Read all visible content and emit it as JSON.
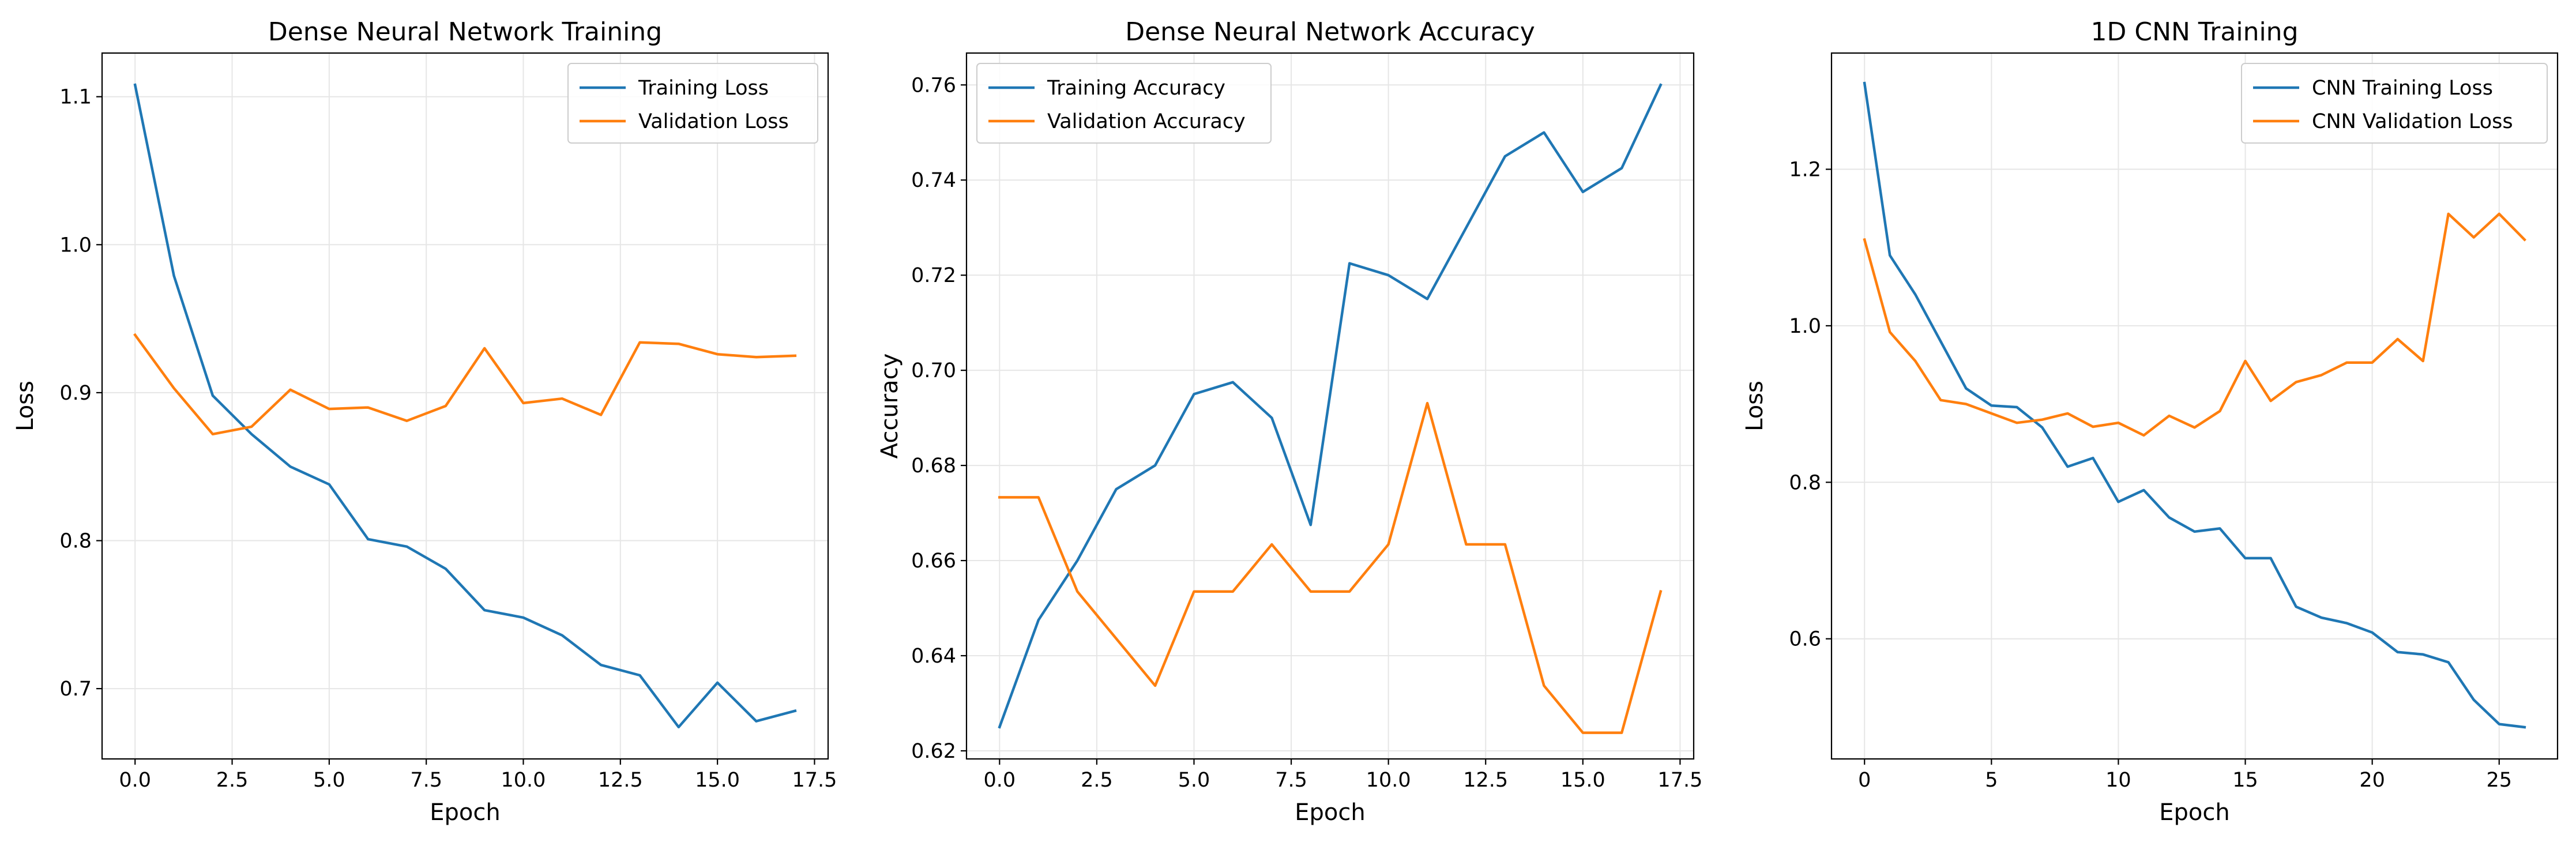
{
  "colors": {
    "series1": "#1f77b4",
    "series2": "#ff7f0e",
    "grid": "#e6e6e6",
    "axes": "#000000"
  },
  "chart_data": [
    {
      "type": "line",
      "title": "Dense Neural Network Training",
      "xlabel": "Epoch",
      "ylabel": "Loss",
      "xlim": [
        -0.85,
        17.85
      ],
      "ylim": [
        0.6525,
        1.1295
      ],
      "xticks": [
        0,
        2.5,
        5,
        7.5,
        10,
        12.5,
        15,
        17.5
      ],
      "xtick_labels": [
        "0.0",
        "2.5",
        "5.0",
        "7.5",
        "10.0",
        "12.5",
        "15.0",
        "17.5"
      ],
      "yticks": [
        0.7,
        0.8,
        0.9,
        1.0,
        1.1
      ],
      "ytick_labels": [
        "0.7",
        "0.8",
        "0.9",
        "1.0",
        "1.1"
      ],
      "grid": true,
      "legend": "top-right",
      "x": [
        0,
        1,
        2,
        3,
        4,
        5,
        6,
        7,
        8,
        9,
        10,
        11,
        12,
        13,
        14,
        15,
        16,
        17
      ],
      "series": [
        {
          "name": "Training Loss",
          "color": "#1f77b4",
          "values": [
            1.108,
            0.979,
            0.898,
            0.872,
            0.85,
            0.838,
            0.801,
            0.796,
            0.781,
            0.753,
            0.748,
            0.736,
            0.716,
            0.709,
            0.674,
            0.704,
            0.678,
            0.685
          ]
        },
        {
          "name": "Validation Loss",
          "color": "#ff7f0e",
          "values": [
            0.939,
            0.903,
            0.872,
            0.877,
            0.902,
            0.889,
            0.89,
            0.881,
            0.891,
            0.93,
            0.893,
            0.896,
            0.885,
            0.934,
            0.933,
            0.926,
            0.924,
            0.925
          ]
        }
      ]
    },
    {
      "type": "line",
      "title": "Dense Neural Network Accuracy",
      "xlabel": "Epoch",
      "ylabel": "Accuracy",
      "xlim": [
        -0.85,
        17.85
      ],
      "ylim": [
        0.6183,
        0.7667
      ],
      "xticks": [
        0,
        2.5,
        5,
        7.5,
        10,
        12.5,
        15,
        17.5
      ],
      "xtick_labels": [
        "0.0",
        "2.5",
        "5.0",
        "7.5",
        "10.0",
        "12.5",
        "15.0",
        "17.5"
      ],
      "yticks": [
        0.62,
        0.64,
        0.66,
        0.68,
        0.7,
        0.72,
        0.74,
        0.76
      ],
      "ytick_labels": [
        "0.62",
        "0.64",
        "0.66",
        "0.68",
        "0.70",
        "0.72",
        "0.74",
        "0.76"
      ],
      "grid": true,
      "legend": "top-left",
      "x": [
        0,
        1,
        2,
        3,
        4,
        5,
        6,
        7,
        8,
        9,
        10,
        11,
        12,
        13,
        14,
        15,
        16,
        17
      ],
      "series": [
        {
          "name": "Training Accuracy",
          "color": "#1f77b4",
          "values": [
            0.625,
            0.6475,
            0.66,
            0.675,
            0.68,
            0.695,
            0.6975,
            0.69,
            0.6675,
            0.7225,
            0.72,
            0.715,
            0.73,
            0.745,
            0.75,
            0.7375,
            0.7425,
            0.76
          ]
        },
        {
          "name": "Validation Accuracy",
          "color": "#ff7f0e",
          "values": [
            0.6733,
            0.6733,
            0.6535,
            0.6436,
            0.6337,
            0.6535,
            0.6535,
            0.6634,
            0.6535,
            0.6535,
            0.6634,
            0.6931,
            0.6634,
            0.6634,
            0.6337,
            0.6238,
            0.6238,
            0.6535
          ]
        }
      ]
    },
    {
      "type": "line",
      "title": "1D CNN Training",
      "xlabel": "Epoch",
      "ylabel": "Loss",
      "xlim": [
        -1.3,
        27.3
      ],
      "ylim": [
        0.4465,
        1.3485
      ],
      "xticks": [
        0,
        5,
        10,
        15,
        20,
        25
      ],
      "xtick_labels": [
        "0",
        "5",
        "10",
        "15",
        "20",
        "25"
      ],
      "yticks": [
        0.6,
        0.8,
        1.0,
        1.2
      ],
      "ytick_labels": [
        "0.6",
        "0.8",
        "1.0",
        "1.2"
      ],
      "grid": true,
      "legend": "top-right",
      "x": [
        0,
        1,
        2,
        3,
        4,
        5,
        6,
        7,
        8,
        9,
        10,
        11,
        12,
        13,
        14,
        15,
        16,
        17,
        18,
        19,
        20,
        21,
        22,
        23,
        24,
        25,
        26
      ],
      "series": [
        {
          "name": "CNN Training Loss",
          "color": "#1f77b4",
          "values": [
            1.31,
            1.09,
            1.04,
            0.98,
            0.92,
            0.898,
            0.896,
            0.87,
            0.82,
            0.831,
            0.775,
            0.79,
            0.755,
            0.737,
            0.741,
            0.703,
            0.703,
            0.641,
            0.627,
            0.62,
            0.608,
            0.583,
            0.58,
            0.57,
            0.522,
            0.491,
            0.487
          ]
        },
        {
          "name": "CNN Validation Loss",
          "color": "#ff7f0e",
          "values": [
            1.11,
            0.992,
            0.955,
            0.905,
            0.9,
            0.888,
            0.876,
            0.88,
            0.888,
            0.871,
            0.876,
            0.86,
            0.885,
            0.87,
            0.891,
            0.955,
            0.904,
            0.928,
            0.937,
            0.953,
            0.953,
            0.983,
            0.955,
            1.143,
            1.113,
            1.143,
            1.11
          ]
        }
      ]
    }
  ]
}
